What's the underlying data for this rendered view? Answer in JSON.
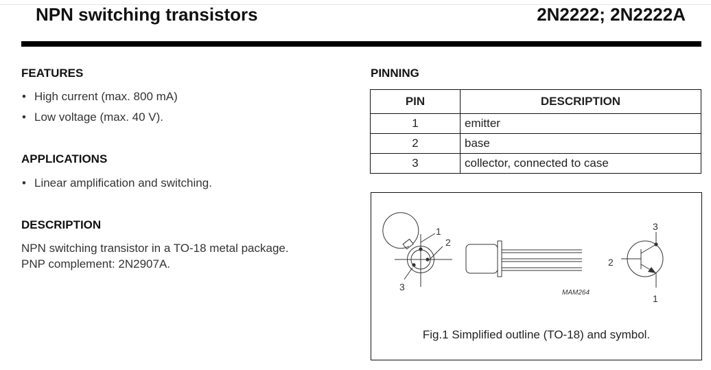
{
  "header": {
    "title": "NPN switching transistors",
    "part_numbers": "2N2222; 2N2222A"
  },
  "features": {
    "title": "FEATURES",
    "items": [
      "High current (max. 800 mA)",
      "Low voltage (max. 40 V)."
    ]
  },
  "applications": {
    "title": "APPLICATIONS",
    "items": [
      "Linear amplification and switching."
    ]
  },
  "description": {
    "title": "DESCRIPTION",
    "lines": [
      "NPN switching transistor in a TO-18 metal package.",
      "PNP complement: 2N2907A."
    ]
  },
  "pinning": {
    "title": "PINNING",
    "headers": [
      "PIN",
      "DESCRIPTION"
    ],
    "rows": [
      {
        "pin": "1",
        "description": "emitter"
      },
      {
        "pin": "2",
        "description": "base"
      },
      {
        "pin": "3",
        "description": "collector, connected to case"
      }
    ]
  },
  "figure": {
    "outline_pin_labels": [
      "1",
      "2",
      "3"
    ],
    "symbol_pin_labels": {
      "collector": "3",
      "base": "2",
      "emitter": "1"
    },
    "code": "MAM264",
    "caption": "Fig.1  Simplified outline (TO-18) and symbol."
  }
}
